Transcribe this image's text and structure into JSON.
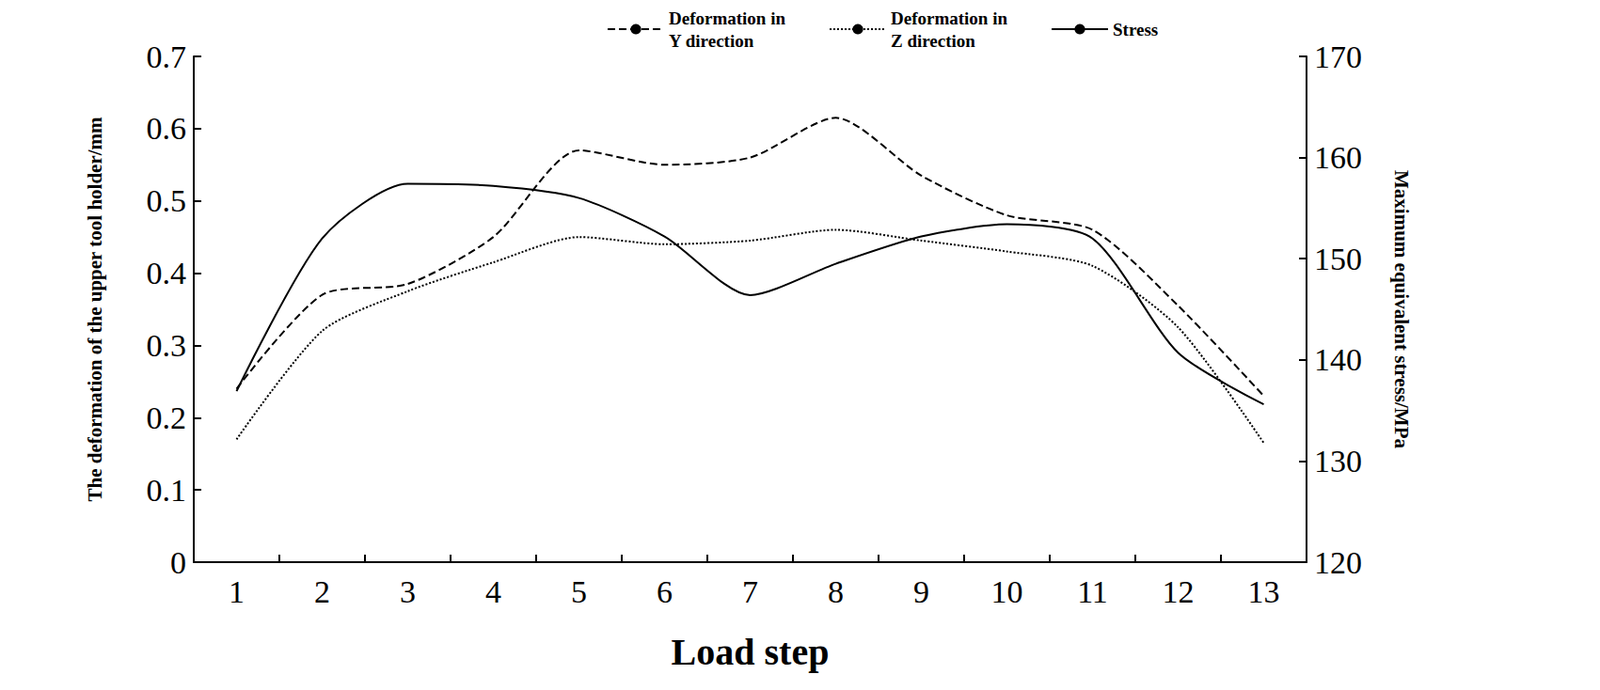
{
  "chart_data": {
    "type": "line",
    "x_label": "Load step",
    "y_label": "The deformation of the upper tool holder/mm",
    "y2_label": "Maximum equivalent stress/MPa",
    "categories": [
      "1",
      "2",
      "3",
      "4",
      "5",
      "6",
      "7",
      "8",
      "9",
      "10",
      "11",
      "12",
      "13"
    ],
    "ylim": [
      0,
      0.7
    ],
    "yticks": [
      0,
      0.1,
      0.2,
      0.3,
      0.4,
      0.5,
      0.6,
      0.7
    ],
    "y2lim": [
      120,
      170
    ],
    "y2ticks": [
      120,
      130,
      140,
      150,
      160,
      170
    ],
    "grid": false,
    "legend": "top",
    "series": [
      {
        "name": "Deformation in Y direction",
        "color": "#000000",
        "line_style": "dashed",
        "marker": "none",
        "values": [
          0.24,
          0.37,
          0.385,
          0.45,
          0.57,
          0.55,
          0.56,
          0.615,
          0.535,
          0.48,
          0.46,
          0.355,
          0.23
        ]
      },
      {
        "name": "Deformation in Z direction",
        "color": "#000000",
        "line_style": "dotted",
        "marker": "none",
        "values": [
          0.17,
          0.32,
          0.375,
          0.415,
          0.45,
          0.44,
          0.445,
          0.46,
          0.445,
          0.43,
          0.41,
          0.325,
          0.165
        ]
      },
      {
        "name": "Stress",
        "color": "#000000",
        "line_style": "solid",
        "marker": "none",
        "axis": "y2",
        "values": [
          136.9,
          152.0,
          157.4,
          157.2,
          156.0,
          152.2,
          146.4,
          149.5,
          152.2,
          153.4,
          152.0,
          140.7,
          135.6
        ]
      }
    ]
  }
}
